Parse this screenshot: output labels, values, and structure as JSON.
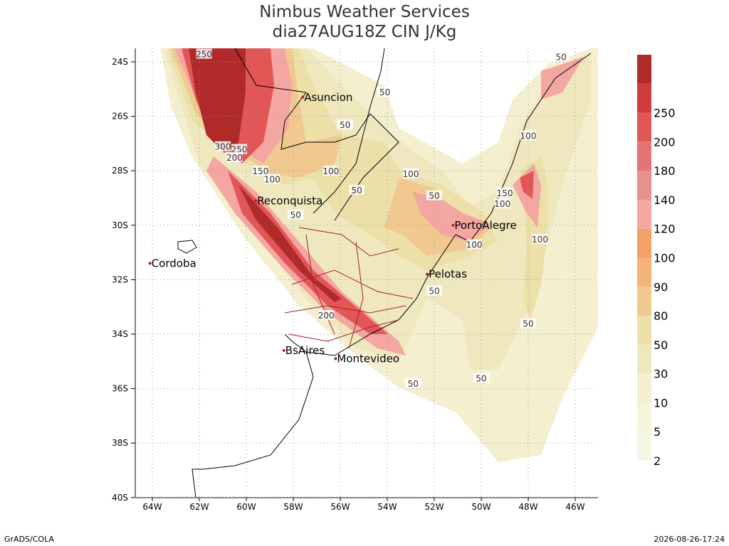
{
  "header": {
    "title": "Nimbus Weather Services",
    "subtitle": "dia27AUG18Z CIN J/Kg"
  },
  "axes": {
    "lon_ticks": [
      {
        "value": 64,
        "label": "64W"
      },
      {
        "value": 62,
        "label": "62W"
      },
      {
        "value": 60,
        "label": "60W"
      },
      {
        "value": 58,
        "label": "58W"
      },
      {
        "value": 56,
        "label": "56W"
      },
      {
        "value": 54,
        "label": "54W"
      },
      {
        "value": 52,
        "label": "52W"
      },
      {
        "value": 50,
        "label": "50W"
      },
      {
        "value": 48,
        "label": "48W"
      },
      {
        "value": 46,
        "label": "46W"
      }
    ],
    "lat_ticks": [
      {
        "value": 24,
        "label": "24S"
      },
      {
        "value": 26,
        "label": "26S"
      },
      {
        "value": 28,
        "label": "28S"
      },
      {
        "value": 30,
        "label": "30S"
      },
      {
        "value": 32,
        "label": "32S"
      },
      {
        "value": 34,
        "label": "34S"
      },
      {
        "value": 36,
        "label": "36S"
      },
      {
        "value": 38,
        "label": "38S"
      },
      {
        "value": 40,
        "label": "40S"
      }
    ]
  },
  "colorbar": {
    "levels": [
      2,
      5,
      10,
      30,
      50,
      80,
      90,
      100,
      120,
      140,
      180,
      200,
      250
    ],
    "colors": [
      "#f4f7e4",
      "#f5f4dc",
      "#f3efcf",
      "#efe8bf",
      "#ecdfa8",
      "#f0c890",
      "#f5b47c",
      "#f6a068",
      "#f4a6a2",
      "#e89090",
      "#e57474",
      "#e25656",
      "#cd3d3d",
      "#b02a2a"
    ]
  },
  "cities": [
    {
      "name": "Asuncion",
      "lon": 57.6,
      "lat": 25.3
    },
    {
      "name": "Cordoba",
      "lon": 64.1,
      "lat": 31.4
    },
    {
      "name": "Reconquista",
      "lon": 59.6,
      "lat": 29.1
    },
    {
      "name": "PortoAlegre",
      "lon": 51.2,
      "lat": 30.0
    },
    {
      "name": "Pelotas",
      "lon": 52.3,
      "lat": 31.8
    },
    {
      "name": "BsAires",
      "lon": 58.4,
      "lat": 34.6
    },
    {
      "name": "Montevideo",
      "lon": 56.2,
      "lat": 34.9
    }
  ],
  "contour_labels": [
    {
      "value": 250,
      "lon": 61.8,
      "lat": 23.7
    },
    {
      "value": 300,
      "lon": 61.0,
      "lat": 27.1
    },
    {
      "value": 250,
      "lon": 60.3,
      "lat": 27.2
    },
    {
      "value": 200,
      "lon": 60.5,
      "lat": 27.5
    },
    {
      "value": 150,
      "lon": 59.4,
      "lat": 28.0
    },
    {
      "value": 100,
      "lon": 58.9,
      "lat": 28.3
    },
    {
      "value": 100,
      "lon": 56.4,
      "lat": 28.0
    },
    {
      "value": 50,
      "lon": 54.1,
      "lat": 25.1
    },
    {
      "value": 50,
      "lon": 55.8,
      "lat": 26.3
    },
    {
      "value": 50,
      "lon": 55.3,
      "lat": 28.7
    },
    {
      "value": 50,
      "lon": 57.9,
      "lat": 29.6
    },
    {
      "value": 100,
      "lon": 53.0,
      "lat": 28.1
    },
    {
      "value": 50,
      "lon": 52.0,
      "lat": 28.9
    },
    {
      "value": 100,
      "lon": 48.0,
      "lat": 26.7
    },
    {
      "value": 150,
      "lon": 49.0,
      "lat": 28.8
    },
    {
      "value": 100,
      "lon": 49.1,
      "lat": 29.2
    },
    {
      "value": 100,
      "lon": 47.5,
      "lat": 30.5
    },
    {
      "value": 100,
      "lon": 50.3,
      "lat": 30.7
    },
    {
      "value": 50,
      "lon": 46.6,
      "lat": 23.8
    },
    {
      "value": 50,
      "lon": 52.0,
      "lat": 32.4
    },
    {
      "value": 200,
      "lon": 56.6,
      "lat": 33.3
    },
    {
      "value": 50,
      "lon": 48.0,
      "lat": 33.6
    },
    {
      "value": 50,
      "lon": 52.9,
      "lat": 35.8
    },
    {
      "value": 50,
      "lon": 50.0,
      "lat": 35.6
    }
  ],
  "footer": {
    "left": "GrADS/COLA",
    "right": "2026-08-26-17:24"
  }
}
